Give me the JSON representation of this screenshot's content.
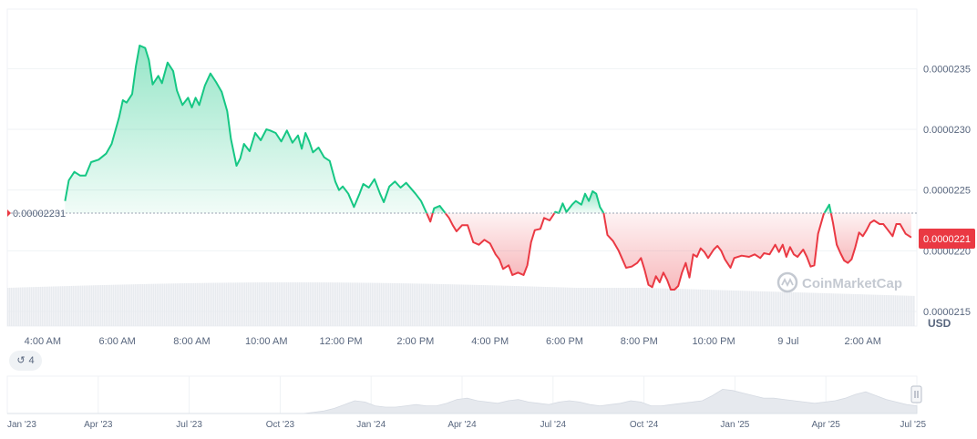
{
  "chart_data": {
    "type": "area",
    "currency_label": "USD",
    "watermark": "CoinMarketCap",
    "reference_value": 2.231e-05,
    "reference_label": "0.00002231",
    "current_value": 2.21e-05,
    "current_label": "0.0000221",
    "ylim": [
      2.138e-05,
      2.399e-05
    ],
    "y_ticks": [
      {
        "value": 2.35e-05,
        "label": "0.0000235"
      },
      {
        "value": 2.3e-05,
        "label": "0.0000230"
      },
      {
        "value": 2.25e-05,
        "label": "0.0000225"
      },
      {
        "value": 2.2e-05,
        "label": "0.0000220"
      },
      {
        "value": 2.15e-05,
        "label": "0.0000215"
      }
    ],
    "x_ticks": [
      "4:00 AM",
      "6:00 AM",
      "8:00 AM",
      "10:00 AM",
      "12:00 PM",
      "2:00 PM",
      "4:00 PM",
      "6:00 PM",
      "8:00 PM",
      "10:00 PM",
      "9 Jul",
      "2:00 AM"
    ],
    "x_tick_hours": [
      4,
      6,
      8,
      10,
      12,
      14,
      16,
      18,
      20,
      22,
      24,
      26
    ],
    "xlim_hours": [
      3.05,
      27.45
    ],
    "colors": {
      "up": "#16c784",
      "down": "#ea3943",
      "current_badge": "#ea3943"
    },
    "price": [
      [
        4.6,
        2.241e-05
      ],
      [
        4.7,
        2.258e-05
      ],
      [
        4.85,
        2.265e-05
      ],
      [
        5.0,
        2.262e-05
      ],
      [
        5.15,
        2.262e-05
      ],
      [
        5.3,
        2.273e-05
      ],
      [
        5.5,
        2.275e-05
      ],
      [
        5.7,
        2.28e-05
      ],
      [
        5.85,
        2.288e-05
      ],
      [
        6.05,
        2.31e-05
      ],
      [
        6.15,
        2.324e-05
      ],
      [
        6.25,
        2.322e-05
      ],
      [
        6.4,
        2.329e-05
      ],
      [
        6.5,
        2.352e-05
      ],
      [
        6.6,
        2.369e-05
      ],
      [
        6.75,
        2.367e-05
      ],
      [
        6.85,
        2.357e-05
      ],
      [
        6.95,
        2.337e-05
      ],
      [
        7.1,
        2.344e-05
      ],
      [
        7.2,
        2.338e-05
      ],
      [
        7.35,
        2.355e-05
      ],
      [
        7.5,
        2.348e-05
      ],
      [
        7.6,
        2.332e-05
      ],
      [
        7.75,
        2.32e-05
      ],
      [
        7.9,
        2.326e-05
      ],
      [
        8.0,
        2.318e-05
      ],
      [
        8.1,
        2.326e-05
      ],
      [
        8.2,
        2.32e-05
      ],
      [
        8.35,
        2.336e-05
      ],
      [
        8.5,
        2.346e-05
      ],
      [
        8.65,
        2.339e-05
      ],
      [
        8.8,
        2.331e-05
      ],
      [
        8.95,
        2.315e-05
      ],
      [
        9.05,
        2.292e-05
      ],
      [
        9.2,
        2.27e-05
      ],
      [
        9.3,
        2.276e-05
      ],
      [
        9.4,
        2.288e-05
      ],
      [
        9.55,
        2.282e-05
      ],
      [
        9.7,
        2.297e-05
      ],
      [
        9.85,
        2.291e-05
      ],
      [
        10.0,
        2.3e-05
      ],
      [
        10.1,
        2.299e-05
      ],
      [
        10.25,
        2.297e-05
      ],
      [
        10.4,
        2.29e-05
      ],
      [
        10.55,
        2.299e-05
      ],
      [
        10.7,
        2.289e-05
      ],
      [
        10.85,
        2.295e-05
      ],
      [
        10.95,
        2.284e-05
      ],
      [
        11.05,
        2.297e-05
      ],
      [
        11.15,
        2.29e-05
      ],
      [
        11.25,
        2.281e-05
      ],
      [
        11.4,
        2.285e-05
      ],
      [
        11.55,
        2.277e-05
      ],
      [
        11.7,
        2.274e-05
      ],
      [
        11.85,
        2.257e-05
      ],
      [
        11.95,
        2.25e-05
      ],
      [
        12.05,
        2.253e-05
      ],
      [
        12.2,
        2.247e-05
      ],
      [
        12.35,
        2.236e-05
      ],
      [
        12.5,
        2.247e-05
      ],
      [
        12.6,
        2.255e-05
      ],
      [
        12.75,
        2.252e-05
      ],
      [
        12.9,
        2.259e-05
      ],
      [
        13.05,
        2.247e-05
      ],
      [
        13.15,
        2.24e-05
      ],
      [
        13.3,
        2.253e-05
      ],
      [
        13.45,
        2.257e-05
      ],
      [
        13.6,
        2.252e-05
      ],
      [
        13.75,
        2.256e-05
      ],
      [
        14.0,
        2.247e-05
      ],
      [
        14.15,
        2.241e-05
      ],
      [
        14.3,
        2.231e-05
      ],
      [
        14.4,
        2.224e-05
      ],
      [
        14.5,
        2.235e-05
      ],
      [
        14.65,
        2.237e-05
      ],
      [
        14.8,
        2.231e-05
      ],
      [
        14.9,
        2.227e-05
      ],
      [
        15.0,
        2.221e-05
      ],
      [
        15.1,
        2.216e-05
      ],
      [
        15.25,
        2.221e-05
      ],
      [
        15.4,
        2.221e-05
      ],
      [
        15.55,
        2.207e-05
      ],
      [
        15.7,
        2.205e-05
      ],
      [
        15.85,
        2.209e-05
      ],
      [
        16.0,
        2.206e-05
      ],
      [
        16.15,
        2.197e-05
      ],
      [
        16.25,
        2.193e-05
      ],
      [
        16.35,
        2.185e-05
      ],
      [
        16.5,
        2.188e-05
      ],
      [
        16.6,
        2.18e-05
      ],
      [
        16.75,
        2.182e-05
      ],
      [
        16.9,
        2.18e-05
      ],
      [
        17.0,
        2.188e-05
      ],
      [
        17.1,
        2.207e-05
      ],
      [
        17.2,
        2.217e-05
      ],
      [
        17.35,
        2.218e-05
      ],
      [
        17.45,
        2.227e-05
      ],
      [
        17.6,
        2.225e-05
      ],
      [
        17.75,
        2.232e-05
      ],
      [
        17.85,
        2.231e-05
      ],
      [
        17.95,
        2.239e-05
      ],
      [
        18.05,
        2.232e-05
      ],
      [
        18.2,
        2.238e-05
      ],
      [
        18.3,
        2.241e-05
      ],
      [
        18.45,
        2.238e-05
      ],
      [
        18.55,
        2.247e-05
      ],
      [
        18.65,
        2.241e-05
      ],
      [
        18.75,
        2.249e-05
      ],
      [
        18.85,
        2.247e-05
      ],
      [
        18.95,
        2.236e-05
      ],
      [
        19.05,
        2.231e-05
      ],
      [
        19.15,
        2.213e-05
      ],
      [
        19.3,
        2.208e-05
      ],
      [
        19.45,
        2.2e-05
      ],
      [
        19.55,
        2.193e-05
      ],
      [
        19.65,
        2.186e-05
      ],
      [
        19.8,
        2.187e-05
      ],
      [
        19.95,
        2.19e-05
      ],
      [
        20.05,
        2.194e-05
      ],
      [
        20.15,
        2.184e-05
      ],
      [
        20.25,
        2.172e-05
      ],
      [
        20.35,
        2.17e-05
      ],
      [
        20.45,
        2.179e-05
      ],
      [
        20.55,
        2.174e-05
      ],
      [
        20.65,
        2.182e-05
      ],
      [
        20.75,
        2.176e-05
      ],
      [
        20.85,
        2.168e-05
      ],
      [
        20.95,
        2.168e-05
      ],
      [
        21.05,
        2.171e-05
      ],
      [
        21.15,
        2.182e-05
      ],
      [
        21.25,
        2.19e-05
      ],
      [
        21.35,
        2.178e-05
      ],
      [
        21.45,
        2.197e-05
      ],
      [
        21.55,
        2.195e-05
      ],
      [
        21.65,
        2.202e-05
      ],
      [
        21.75,
        2.199e-05
      ],
      [
        21.85,
        2.194e-05
      ],
      [
        22.0,
        2.201e-05
      ],
      [
        22.1,
        2.204e-05
      ],
      [
        22.2,
        2.2e-05
      ],
      [
        22.3,
        2.193e-05
      ],
      [
        22.45,
        2.186e-05
      ],
      [
        22.55,
        2.194e-05
      ],
      [
        22.75,
        2.196e-05
      ],
      [
        22.95,
        2.195e-05
      ],
      [
        23.1,
        2.197e-05
      ],
      [
        23.25,
        2.194e-05
      ],
      [
        23.35,
        2.198e-05
      ],
      [
        23.5,
        2.197e-05
      ],
      [
        23.65,
        2.205e-05
      ],
      [
        23.75,
        2.199e-05
      ],
      [
        23.85,
        2.205e-05
      ],
      [
        23.95,
        2.195e-05
      ],
      [
        24.05,
        2.203e-05
      ],
      [
        24.15,
        2.197e-05
      ],
      [
        24.25,
        2.195e-05
      ],
      [
        24.4,
        2.201e-05
      ],
      [
        24.5,
        2.195e-05
      ],
      [
        24.6,
        2.187e-05
      ],
      [
        24.7,
        2.188e-05
      ],
      [
        24.8,
        2.214e-05
      ],
      [
        24.95,
        2.23e-05
      ],
      [
        25.1,
        2.238e-05
      ],
      [
        25.2,
        2.223e-05
      ],
      [
        25.3,
        2.205e-05
      ],
      [
        25.4,
        2.198e-05
      ],
      [
        25.5,
        2.192e-05
      ],
      [
        25.6,
        2.19e-05
      ],
      [
        25.7,
        2.193e-05
      ],
      [
        25.8,
        2.203e-05
      ],
      [
        25.9,
        2.215e-05
      ],
      [
        26.0,
        2.212e-05
      ],
      [
        26.1,
        2.217e-05
      ],
      [
        26.2,
        2.223e-05
      ],
      [
        26.3,
        2.225e-05
      ],
      [
        26.45,
        2.222e-05
      ],
      [
        26.55,
        2.222e-05
      ],
      [
        26.65,
        2.218e-05
      ],
      [
        26.8,
        2.212e-05
      ],
      [
        26.9,
        2.222e-05
      ],
      [
        27.0,
        2.222e-05
      ],
      [
        27.15,
        2.214e-05
      ],
      [
        27.3,
        2.211e-05
      ]
    ],
    "navigator": {
      "x_ticks": [
        "Jan '23",
        "Apr '23",
        "Jul '23",
        "Oct '23",
        "Jan '24",
        "Apr '24",
        "Jul '24",
        "Oct '24",
        "Jan '25",
        "Apr '25",
        "Jul '25"
      ],
      "profile": [
        0,
        0,
        0,
        0,
        0,
        0,
        0,
        0,
        0,
        0,
        0,
        0,
        0,
        0,
        0,
        0,
        0,
        0,
        0,
        0,
        0,
        0,
        0,
        0,
        0,
        0,
        0,
        0,
        0,
        0,
        0.05,
        0.1,
        0.2,
        0.35,
        0.5,
        0.45,
        0.3,
        0.25,
        0.25,
        0.3,
        0.35,
        0.3,
        0.3,
        0.4,
        0.55,
        0.6,
        0.5,
        0.45,
        0.4,
        0.5,
        0.55,
        0.45,
        0.4,
        0.35,
        0.45,
        0.5,
        0.45,
        0.35,
        0.3,
        0.35,
        0.4,
        0.5,
        0.45,
        0.3,
        0.3,
        0.35,
        0.4,
        0.45,
        0.5,
        0.7,
        0.95,
        0.9,
        0.8,
        0.7,
        0.6,
        0.6,
        0.55,
        0.5,
        0.45,
        0.4,
        0.45,
        0.5,
        0.6,
        0.75,
        0.85,
        0.7,
        0.55,
        0.45,
        0.35,
        0.3
      ]
    }
  },
  "history_badge": {
    "count": "4"
  }
}
